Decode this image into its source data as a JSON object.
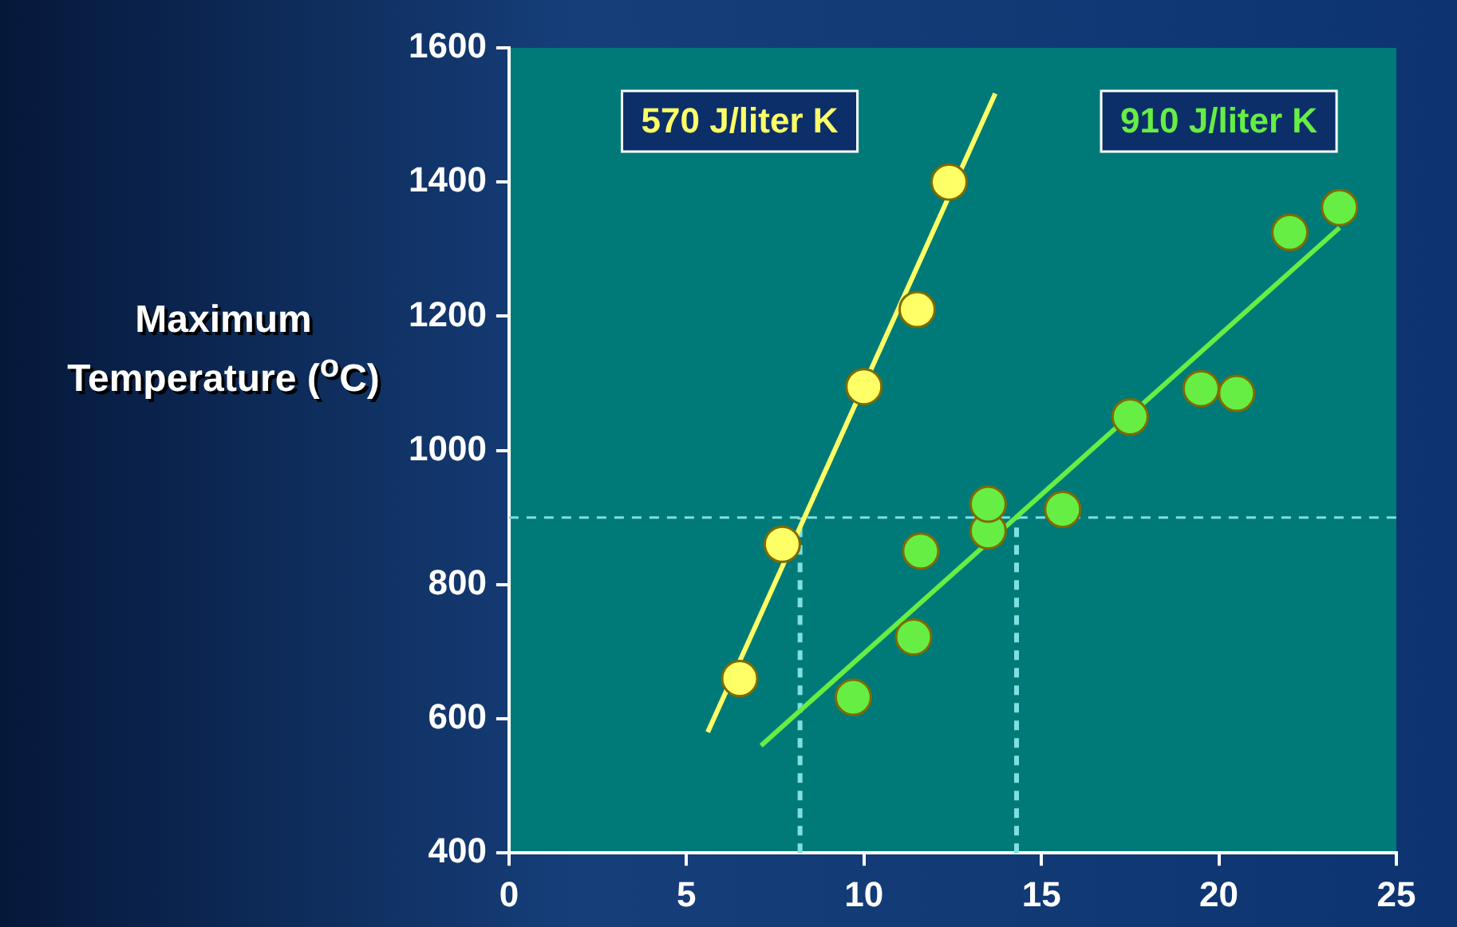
{
  "chart_data": {
    "type": "scatter",
    "ylabel": "Maximum Temperature ($^{o}$C)",
    "xlim": [
      0,
      25
    ],
    "xticks": [
      0,
      5,
      10,
      15,
      20,
      25
    ],
    "ylim": [
      400,
      1600
    ],
    "yticks": [
      400,
      600,
      800,
      1000,
      1200,
      1400,
      1600
    ],
    "grid": false,
    "legend": false,
    "marker": "circle",
    "series": [
      {
        "name": "570 J/liter K",
        "color": "#ffff66",
        "x": [
          6.5,
          7.7,
          10,
          11.5,
          12.4
        ],
        "values": [
          660,
          860,
          1095,
          1210,
          1400
        ]
      },
      {
        "name": "910 J/liter K",
        "color": "#66ee44",
        "x": [
          9.7,
          11.4,
          11.6,
          13.5,
          13.5,
          15.6,
          17.5,
          19.5,
          20.5,
          22,
          23.4
        ],
        "values": [
          632,
          722,
          850,
          880,
          920,
          912,
          1050,
          1092,
          1085,
          1325,
          1362
        ]
      },
      {
        "type": "line",
        "marker": "none",
        "color": "#ffff66",
        "x": [
          5.6,
          13.7
        ],
        "values": [
          580,
          1532
        ]
      },
      {
        "type": "line",
        "marker": "none",
        "color": "#66ee44",
        "x": [
          7.1,
          23.4
        ],
        "values": [
          560,
          1332
        ]
      },
      {
        "type": "line",
        "marker": "none",
        "line_style": "dashed",
        "color": "#7fe0e0",
        "x": [
          8.2,
          8.2
        ],
        "values": [
          400,
          900
        ]
      },
      {
        "type": "line",
        "marker": "none",
        "line_style": "dashed",
        "color": "#7fe0e0",
        "x": [
          14.3,
          14.3
        ],
        "values": [
          400,
          900
        ]
      }
    ],
    "ref_lines": [
      {
        "axis": "y",
        "value": 900,
        "color": "#7fe0e0",
        "line_style": "dashed"
      }
    ]
  }
}
